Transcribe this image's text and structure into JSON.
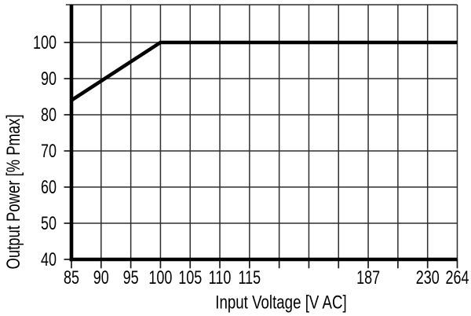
{
  "chart_data": {
    "type": "line",
    "title": "",
    "xlabel": "Input Voltage [V AC]",
    "ylabel": "Output Power [% Pmax]",
    "x_tick_labels": [
      "85",
      "90",
      "95",
      "100",
      "105",
      "110",
      "115",
      "",
      "",
      "",
      "187",
      "",
      "230",
      "264"
    ],
    "x_tick_values": [
      85,
      90,
      95,
      100,
      105,
      110,
      115,
      null,
      null,
      null,
      187,
      null,
      230,
      264
    ],
    "y_ticks": [
      40,
      50,
      60,
      70,
      80,
      90,
      100
    ],
    "ylim": [
      40,
      110
    ],
    "xlim": [
      85,
      264
    ],
    "grid": true,
    "legend": false,
    "axis_note": "x axis is piecewise non-linear: 14 equally spaced grid ticks, labelled only at 85-115 (5 V steps), 187, 230 and 264",
    "series": [
      {
        "name": "output-power-vs-input-voltage",
        "points": [
          {
            "x": 85,
            "y": 84
          },
          {
            "x": 100,
            "y": 100
          },
          {
            "x": 264,
            "y": 100
          }
        ]
      }
    ],
    "colors": {
      "line": "#000000",
      "axis": "#000000",
      "grid": "#2e2e2e",
      "tick": "#1a1a1a",
      "text": "#000000",
      "background": "#ffffff"
    }
  }
}
